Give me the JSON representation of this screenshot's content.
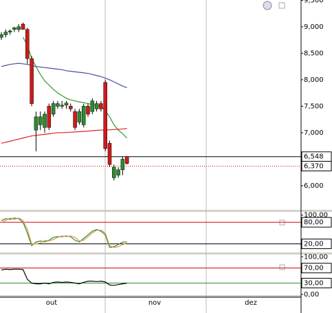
{
  "chart_data": [
    {
      "type": "candlestick",
      "ylim": [
        5545,
        9505
      ],
      "yticks": [
        {
          "value": 9500,
          "label": "9,500"
        },
        {
          "value": 9000,
          "label": "9,000"
        },
        {
          "value": 8500,
          "label": "8,500"
        },
        {
          "value": 8000,
          "label": "8,000"
        },
        {
          "value": 7500,
          "label": "7,500"
        },
        {
          "value": 7000,
          "label": "7,000"
        },
        {
          "value": 6000,
          "label": "6,000"
        }
      ],
      "levels": [
        {
          "value": 6548,
          "label": "6,548",
          "color": "#000000"
        },
        {
          "value": 6370,
          "label": "6,370",
          "color": "#cc0000",
          "dotted": true
        }
      ],
      "up_color": "#2e8b2e",
      "down_color": "#d11a1a",
      "candles": [
        {
          "o": 8800,
          "h": 8900,
          "l": 8750,
          "c": 8850
        },
        {
          "o": 8850,
          "h": 8950,
          "l": 8800,
          "c": 8900
        },
        {
          "o": 8900,
          "h": 8950,
          "l": 8850,
          "c": 8920
        },
        {
          "o": 8950,
          "h": 9000,
          "l": 8900,
          "c": 8980
        },
        {
          "o": 8950,
          "h": 9050,
          "l": 8900,
          "c": 9000
        },
        {
          "o": 9050,
          "h": 9080,
          "l": 8950,
          "c": 8950
        },
        {
          "o": 8950,
          "h": 8980,
          "l": 8300,
          "c": 8400
        },
        {
          "o": 8400,
          "h": 8450,
          "l": 7500,
          "c": 7550
        },
        {
          "o": 7050,
          "h": 7400,
          "l": 6650,
          "c": 7300
        },
        {
          "o": 7150,
          "h": 7400,
          "l": 7050,
          "c": 7300
        },
        {
          "o": 7100,
          "h": 7400,
          "l": 7000,
          "c": 7350
        },
        {
          "o": 7500,
          "h": 7550,
          "l": 7050,
          "c": 7100
        },
        {
          "o": 7350,
          "h": 7600,
          "l": 7300,
          "c": 7550
        },
        {
          "o": 7500,
          "h": 7600,
          "l": 7450,
          "c": 7550
        },
        {
          "o": 7500,
          "h": 7600,
          "l": 7450,
          "c": 7520
        },
        {
          "o": 7520,
          "h": 7600,
          "l": 7450,
          "c": 7560
        },
        {
          "o": 7500,
          "h": 7550,
          "l": 7400,
          "c": 7450
        },
        {
          "o": 7400,
          "h": 7450,
          "l": 7050,
          "c": 7100
        },
        {
          "o": 7200,
          "h": 7450,
          "l": 7150,
          "c": 7400
        },
        {
          "o": 7150,
          "h": 7550,
          "l": 7100,
          "c": 7500
        },
        {
          "o": 7500,
          "h": 7550,
          "l": 7300,
          "c": 7350
        },
        {
          "o": 7400,
          "h": 7650,
          "l": 7350,
          "c": 7600
        },
        {
          "o": 7450,
          "h": 7600,
          "l": 7400,
          "c": 7550
        },
        {
          "o": 7550,
          "h": 7600,
          "l": 7400,
          "c": 7450
        },
        {
          "o": 7950,
          "h": 8000,
          "l": 6650,
          "c": 6700
        },
        {
          "o": 6800,
          "h": 6850,
          "l": 6350,
          "c": 6400
        },
        {
          "o": 6150,
          "h": 6400,
          "l": 6100,
          "c": 6350
        },
        {
          "o": 6200,
          "h": 6350,
          "l": 6150,
          "c": 6300
        },
        {
          "o": 6300,
          "h": 6550,
          "l": 6200,
          "c": 6500
        },
        {
          "o": 6548,
          "h": 6560,
          "l": 6400,
          "c": 6420
        }
      ],
      "series": [
        {
          "color": "#2e9a2e",
          "values": [
            null,
            null,
            null,
            null,
            null,
            8800,
            8650,
            8400,
            8250,
            8100,
            7980,
            7900,
            7820,
            7750,
            7700,
            7650,
            7620,
            7600,
            7580,
            7570,
            7550,
            7530,
            7510,
            7500,
            7420,
            7300,
            7150,
            7050,
            6980,
            6900
          ]
        },
        {
          "color": "#44509a",
          "values": [
            8250,
            8270,
            8290,
            8300,
            8310,
            8300,
            8290,
            8270,
            8250,
            8240,
            8230,
            8220,
            8210,
            8200,
            8190,
            8170,
            8160,
            8150,
            8140,
            8130,
            8120,
            8100,
            8080,
            8060,
            8030,
            8000,
            7960,
            7920,
            7880,
            7850
          ]
        },
        {
          "color": "#e02020",
          "values": [
            6800,
            6820,
            6840,
            6860,
            6880,
            6900,
            6920,
            6940,
            6950,
            6960,
            6970,
            6980,
            6990,
            7000,
            7000,
            7005,
            7010,
            7015,
            7020,
            7025,
            7030,
            7040,
            7045,
            7050,
            7050,
            7055,
            7060,
            7065,
            7070,
            7080
          ]
        }
      ]
    },
    {
      "type": "oscillator",
      "ylim": [
        -4,
        109
      ],
      "yticks": [
        {
          "value": 100,
          "label": "100,00"
        },
        {
          "value": 80,
          "label": "80,00"
        },
        {
          "value": 20,
          "label": "20,00"
        }
      ],
      "levels": [
        {
          "value": 80,
          "color": "#cc0000"
        },
        {
          "value": 20,
          "color": "#000000"
        }
      ],
      "series": [
        {
          "color": "#2e8b2e",
          "values": [
            85,
            90,
            88,
            92,
            90,
            80,
            50,
            15,
            25,
            28,
            25,
            30,
            38,
            40,
            40,
            42,
            40,
            30,
            25,
            35,
            45,
            55,
            60,
            55,
            45,
            10,
            12,
            18,
            25,
            25
          ]
        },
        {
          "color": "#e8904a",
          "values": [
            80,
            85,
            92,
            88,
            92,
            85,
            60,
            20,
            20,
            22,
            30,
            28,
            32,
            38,
            42,
            40,
            42,
            38,
            28,
            30,
            40,
            50,
            58,
            58,
            50,
            15,
            10,
            12,
            18,
            22
          ]
        }
      ]
    },
    {
      "type": "oscillator",
      "ylim": [
        -2,
        106
      ],
      "yticks": [
        {
          "value": 100,
          "label": "100,00"
        },
        {
          "value": 70,
          "label": "70,00"
        },
        {
          "value": 30,
          "label": "30,00"
        },
        {
          "value": 0,
          "label": "0,00"
        }
      ],
      "levels": [
        {
          "value": 70,
          "color": "#cc0000"
        },
        {
          "value": 30,
          "color": "#2e8b2e"
        }
      ],
      "series": [
        {
          "color": "#000000",
          "values": [
            65,
            67,
            66,
            67,
            67,
            66,
            40,
            30,
            28,
            28,
            30,
            28,
            32,
            33,
            32,
            33,
            32,
            30,
            28,
            32,
            35,
            35,
            34,
            35,
            33,
            25,
            24,
            26,
            28,
            30
          ]
        }
      ],
      "x_labels": [
        "out",
        "nov",
        "dez"
      ]
    }
  ]
}
